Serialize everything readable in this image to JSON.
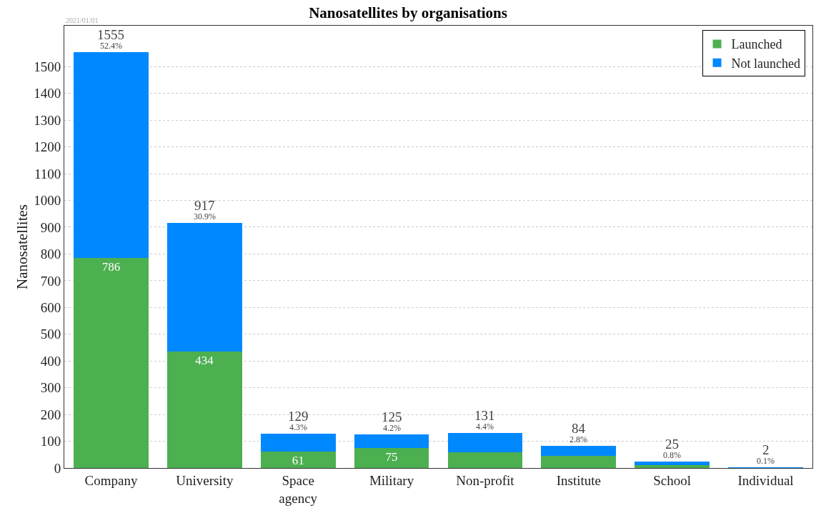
{
  "chart_data": {
    "type": "bar",
    "title": "Nanosatellites by organisations",
    "ylabel": "Nanosatellites",
    "categories": [
      "Company",
      "University",
      "Space agency",
      "Military",
      "Non-profit",
      "Institute",
      "School",
      "Individual"
    ],
    "stacked": true,
    "series": [
      {
        "name": "Launched",
        "color": "#4caf50",
        "values": [
          786,
          434,
          61,
          75,
          60,
          45,
          10,
          1
        ],
        "value_labels": [
          "786",
          "434",
          "61",
          "75",
          null,
          null,
          null,
          null
        ]
      },
      {
        "name": "Not launched",
        "color": "#0088ff",
        "values": [
          769,
          483,
          68,
          50,
          71,
          39,
          15,
          1
        ]
      }
    ],
    "totals": [
      "1555",
      "917",
      "129",
      "125",
      "131",
      "84",
      "25",
      "2"
    ],
    "annotations": [
      "2021/01/01",
      {
        "text": "52.4%",
        "x": "Company",
        "y": 1555
      },
      {
        "text": "30.9%",
        "x": "University",
        "y": 917
      },
      {
        "text": "4.3%",
        "x": "Space agency",
        "y": 129
      },
      {
        "text": "4.2%",
        "x": "Military",
        "y": 125
      },
      {
        "text": "4.4%",
        "x": "Non-profit",
        "y": 131
      },
      {
        "text": "2.8%",
        "x": "Institute",
        "y": 84
      },
      {
        "text": "0.8%",
        "x": "School",
        "y": 25
      },
      {
        "text": "0.1%",
        "x": "Individual",
        "y": 2
      }
    ],
    "ylim": [
      0,
      1653
    ],
    "yticks": [
      0,
      100,
      200,
      300,
      400,
      500,
      600,
      700,
      800,
      900,
      1000,
      1100,
      1200,
      1300,
      1400,
      1500
    ],
    "grid": "y",
    "legend": "top right"
  }
}
